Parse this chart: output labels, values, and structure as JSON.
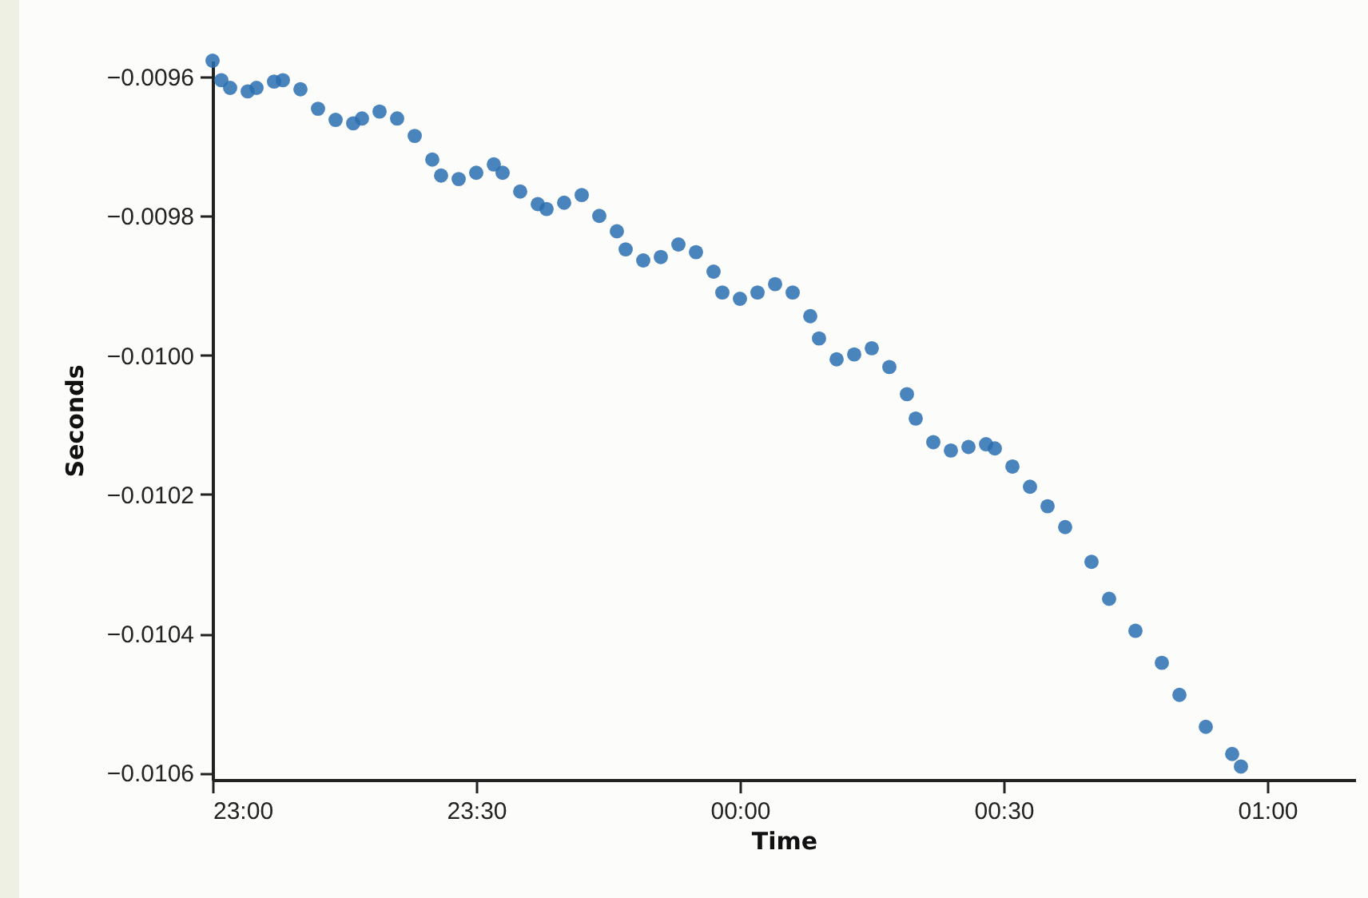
{
  "chart_data": {
    "type": "scatter",
    "xlabel": "Time",
    "ylabel": "Seconds",
    "marker": "circle",
    "grid": false,
    "xlim": [
      "2000-01-01T23:00",
      "2000-01-02T01:10"
    ],
    "ylim": [
      -0.01061,
      -0.009577
    ],
    "xticks": [
      {
        "value": "2000-01-01T23:00",
        "label": "23:00"
      },
      {
        "value": "2000-01-01T23:30",
        "label": "23:30"
      },
      {
        "value": "2000-01-02T00:00",
        "label": "00:00"
      },
      {
        "value": "2000-01-02T00:30",
        "label": "00:30"
      },
      {
        "value": "2000-01-02T01:00",
        "label": "01:00"
      }
    ],
    "yticks": [
      {
        "value": -0.0106,
        "label": "−0.0106"
      },
      {
        "value": -0.0104,
        "label": "−0.0104"
      },
      {
        "value": -0.0102,
        "label": "−0.0102"
      },
      {
        "value": -0.01,
        "label": "−0.0100"
      },
      {
        "value": -0.0098,
        "label": "−0.0098"
      },
      {
        "value": -0.0096,
        "label": "−0.0096"
      }
    ],
    "x": [
      "2000-01-01T23:00",
      "2000-01-01T23:01",
      "2000-01-01T23:02",
      "2000-01-01T23:04",
      "2000-01-01T23:05",
      "2000-01-01T23:07",
      "2000-01-01T23:08",
      "2000-01-01T23:10",
      "2000-01-01T23:12",
      "2000-01-01T23:14",
      "2000-01-01T23:16",
      "2000-01-01T23:17",
      "2000-01-01T23:19",
      "2000-01-01T23:21",
      "2000-01-01T23:23",
      "2000-01-01T23:25",
      "2000-01-01T23:26",
      "2000-01-01T23:28",
      "2000-01-01T23:30",
      "2000-01-01T23:32",
      "2000-01-01T23:33",
      "2000-01-01T23:35",
      "2000-01-01T23:37",
      "2000-01-01T23:38",
      "2000-01-01T23:40",
      "2000-01-01T23:42",
      "2000-01-01T23:44",
      "2000-01-01T23:46",
      "2000-01-01T23:47",
      "2000-01-01T23:49",
      "2000-01-01T23:51",
      "2000-01-01T23:53",
      "2000-01-01T23:55",
      "2000-01-01T23:57",
      "2000-01-01T23:58",
      "2000-01-02T00:00",
      "2000-01-02T00:02",
      "2000-01-02T00:04",
      "2000-01-02T00:06",
      "2000-01-02T00:08",
      "2000-01-02T00:09",
      "2000-01-02T00:11",
      "2000-01-02T00:13",
      "2000-01-02T00:15",
      "2000-01-02T00:17",
      "2000-01-02T00:19",
      "2000-01-02T00:20",
      "2000-01-02T00:22",
      "2000-01-02T00:24",
      "2000-01-02T00:26",
      "2000-01-02T00:28",
      "2000-01-02T00:29",
      "2000-01-02T00:31",
      "2000-01-02T00:33",
      "2000-01-02T00:35",
      "2000-01-02T00:37",
      "2000-01-02T00:40",
      "2000-01-02T00:42",
      "2000-01-02T00:45",
      "2000-01-02T00:48",
      "2000-01-02T00:50",
      "2000-01-02T00:53",
      "2000-01-02T00:56",
      "2000-01-02T00:57"
    ],
    "series": [
      {
        "color": "#2a6fb0",
        "values": [
          -0.009577,
          -0.009605,
          -0.009616,
          -0.009621,
          -0.009616,
          -0.009607,
          -0.009605,
          -0.009618,
          -0.009646,
          -0.009662,
          -0.009667,
          -0.00966,
          -0.00965,
          -0.00966,
          -0.009685,
          -0.009719,
          -0.009742,
          -0.009747,
          -0.009738,
          -0.009726,
          -0.009738,
          -0.009765,
          -0.009783,
          -0.00979,
          -0.009781,
          -0.00977,
          -0.0098,
          -0.009822,
          -0.009848,
          -0.009864,
          -0.009859,
          -0.009841,
          -0.009852,
          -0.00988,
          -0.00991,
          -0.009919,
          -0.00991,
          -0.009898,
          -0.00991,
          -0.009944,
          -0.009976,
          -0.010006,
          -0.009999,
          -0.00999,
          -0.010017,
          -0.010056,
          -0.010091,
          -0.010125,
          -0.010137,
          -0.010132,
          -0.010128,
          -0.010134,
          -0.01016,
          -0.010189,
          -0.010217,
          -0.010247,
          -0.010297,
          -0.01035,
          -0.010396,
          -0.010442,
          -0.010488,
          -0.010534,
          -0.010573,
          -0.010591
        ]
      }
    ]
  }
}
